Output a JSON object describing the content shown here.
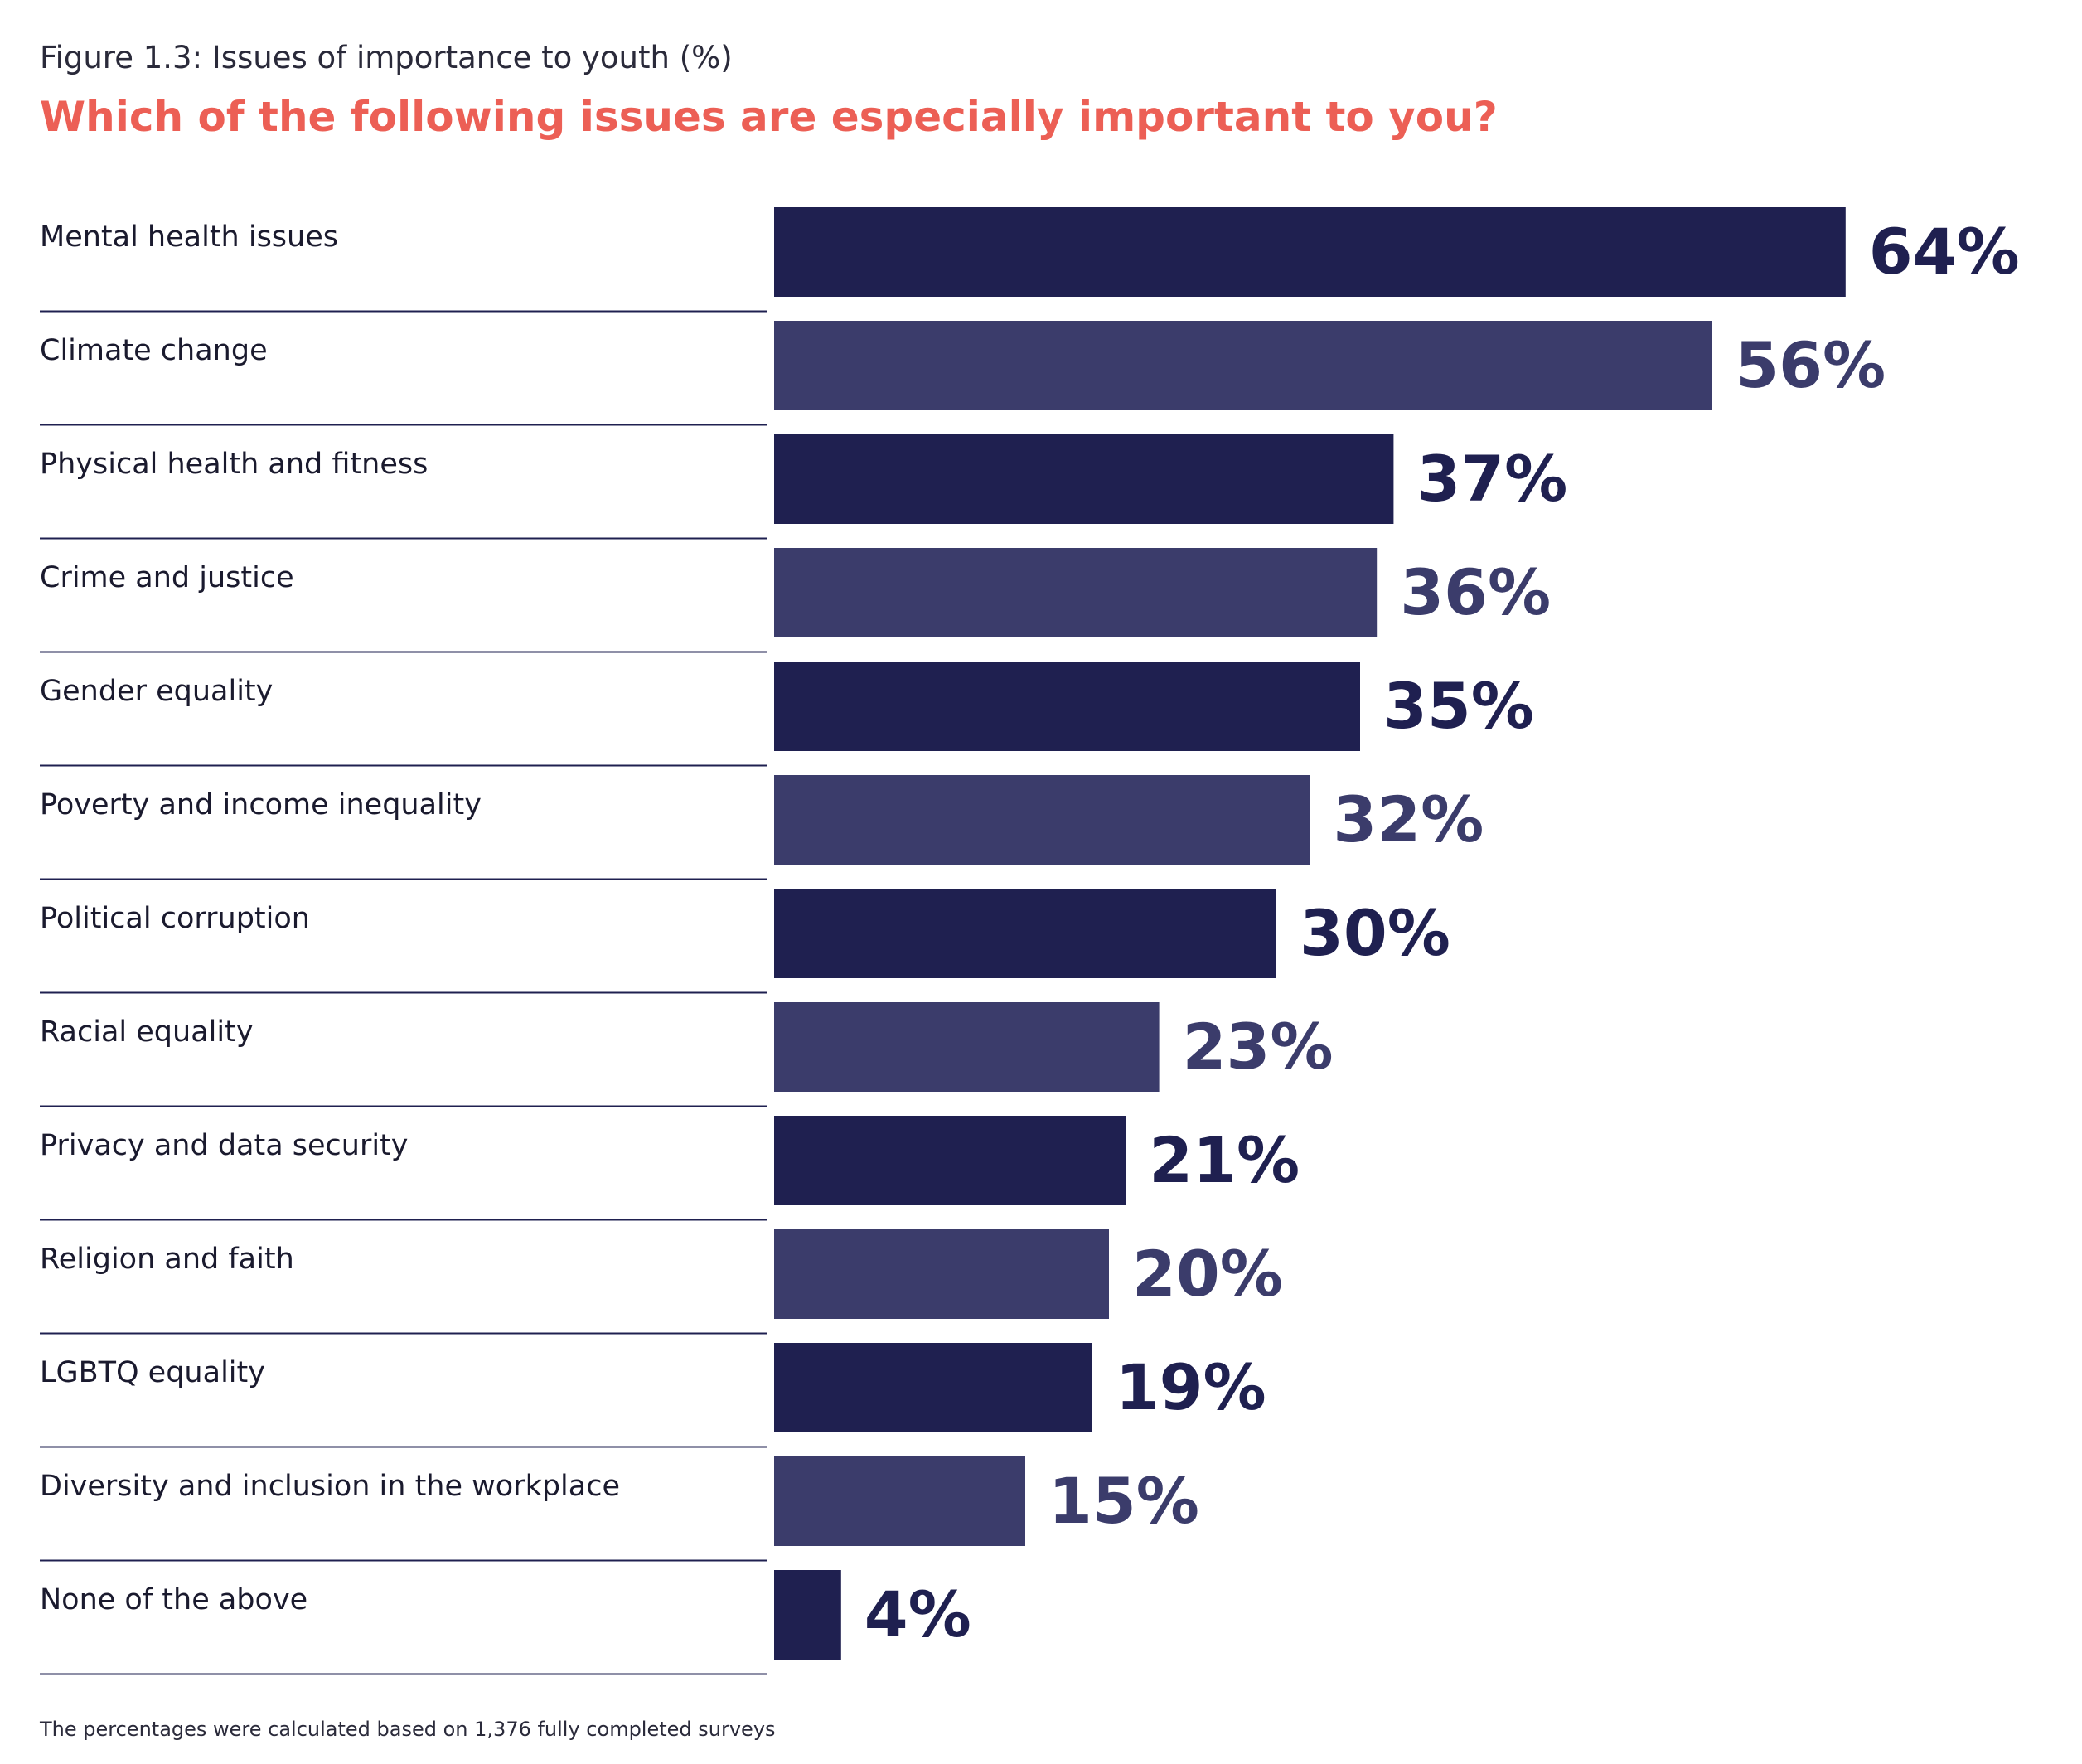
{
  "header": {
    "figure_label": "Figure 1.3: Issues of importance to youth (%)",
    "question": "Which of the following issues are especially important to you?"
  },
  "footnote": "The percentages were calculated based on 1,376 fully completed surveys",
  "colors": {
    "bar_dark": "#1f2050",
    "bar_light": "#3b3c6b",
    "title": "#ec5f55",
    "divider": "#1f2050"
  },
  "chart_data": {
    "type": "bar",
    "orientation": "horizontal",
    "categories": [
      "Mental health issues",
      "Climate change",
      "Physical health and fitness",
      "Crime and justice",
      "Gender equality",
      "Poverty and income inequality",
      "Political corruption",
      "Racial equality",
      "Privacy and data security",
      "Religion and faith",
      "LGBTQ equality",
      "Diversity and inclusion in the workplace",
      "None of the above"
    ],
    "values": [
      64,
      56,
      37,
      36,
      35,
      32,
      30,
      23,
      21,
      20,
      19,
      15,
      4
    ],
    "value_labels": [
      "64%",
      "56%",
      "37%",
      "36%",
      "35%",
      "32%",
      "30%",
      "23%",
      "21%",
      "20%",
      "19%",
      "15%",
      "4%"
    ],
    "unit": "%",
    "grid": false,
    "legend": "none"
  }
}
